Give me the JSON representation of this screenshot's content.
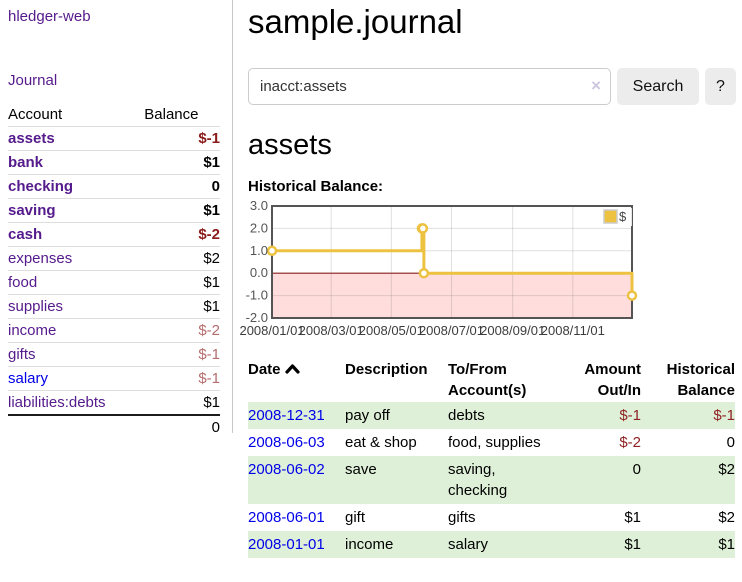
{
  "colors": {
    "link_purple": "#551a8b",
    "link_blue": "#0000e8",
    "negative_strong": "#8b1a1a",
    "negative_muted": "#b56d6d",
    "negative_table": "#8f2323",
    "row_shade_green": "#dff0d8",
    "series_gold": "#edc240"
  },
  "sidebar": {
    "app_title": "hledger-web",
    "journal_link": "Journal",
    "account_header": "Account",
    "balance_header": "Balance",
    "accounts": [
      {
        "name": "assets",
        "indent": 1,
        "bold": true,
        "balance": "$-1",
        "neg": "strong"
      },
      {
        "name": "bank",
        "indent": 2,
        "bold": true,
        "balance": "$1",
        "neg": "none"
      },
      {
        "name": "checking",
        "indent": 3,
        "bold": true,
        "balance": "0",
        "neg": "none"
      },
      {
        "name": "saving",
        "indent": 3,
        "bold": true,
        "balance": "$1",
        "neg": "none"
      },
      {
        "name": "cash",
        "indent": 2,
        "bold": true,
        "balance": "$-2",
        "neg": "strong"
      },
      {
        "name": "expenses",
        "indent": 1,
        "bold": false,
        "balance": "$2",
        "neg": "none"
      },
      {
        "name": "food",
        "indent": 2,
        "bold": false,
        "balance": "$1",
        "neg": "none"
      },
      {
        "name": "supplies",
        "indent": 2,
        "bold": false,
        "balance": "$1",
        "neg": "none"
      },
      {
        "name": "income",
        "indent": 1,
        "bold": false,
        "balance": "$-2",
        "neg": "muted"
      },
      {
        "name": "gifts",
        "indent": 2,
        "bold": false,
        "balance": "$-1",
        "neg": "muted"
      },
      {
        "name": "salary",
        "indent": 2,
        "bold": false,
        "balance": "$-1",
        "neg": "muted",
        "link_color": "blue"
      },
      {
        "name": "liabilities:debts",
        "indent": 1,
        "bold": false,
        "balance": "$1",
        "neg": "none",
        "last": true
      }
    ],
    "total": "0"
  },
  "main": {
    "title": "sample.journal",
    "search": {
      "value": "inacct:assets",
      "clear_icon": "×",
      "button_label": "Search",
      "help_label": "?"
    },
    "account_heading": "assets",
    "chart_label": "Historical Balance:"
  },
  "chart_data": {
    "type": "line",
    "title": "Historical Balance",
    "legend": "$",
    "legend_position": "top-right",
    "grid": true,
    "series_color": "#edc240",
    "below_zero_fill": "#ffdddd",
    "zero_line_color": "#8b1f1f",
    "border_color": "#545454",
    "xlim_days": [
      0,
      365
    ],
    "ylim": [
      -2,
      3
    ],
    "x_ticks": [
      {
        "label": "2008/01/01",
        "day": 0
      },
      {
        "label": "2008/03/01",
        "day": 60
      },
      {
        "label": "2008/05/01",
        "day": 121
      },
      {
        "label": "2008/07/01",
        "day": 182
      },
      {
        "label": "2008/09/01",
        "day": 244
      },
      {
        "label": "2008/11/01",
        "day": 305
      }
    ],
    "y_ticks": [
      {
        "label": "3.0",
        "value": 3
      },
      {
        "label": "2.0",
        "value": 2
      },
      {
        "label": "1.0",
        "value": 1
      },
      {
        "label": "0.0",
        "value": 0
      },
      {
        "label": "-1.0",
        "value": -1
      },
      {
        "label": "-2.0",
        "value": -2
      }
    ],
    "points": [
      {
        "date": "2008-01-01",
        "day": 0,
        "value": 1
      },
      {
        "date": "2008-06-01",
        "day": 152,
        "value": 2
      },
      {
        "date": "2008-06-02",
        "day": 153,
        "value": 2
      },
      {
        "date": "2008-06-03",
        "day": 154,
        "value": 0
      },
      {
        "date": "2008-12-31",
        "day": 365,
        "value": -1
      }
    ]
  },
  "register": {
    "headers": [
      {
        "lines": [
          "Date"
        ],
        "align": "left",
        "sort": "asc"
      },
      {
        "lines": [
          "Description"
        ],
        "align": "left"
      },
      {
        "lines": [
          "To/From",
          "Account(s)"
        ],
        "align": "left"
      },
      {
        "lines": [
          "Amount",
          "Out/In"
        ],
        "align": "right"
      },
      {
        "lines": [
          "Historical",
          "Balance"
        ],
        "align": "right"
      }
    ],
    "rows": [
      {
        "date": "2008-12-31",
        "description": "pay off",
        "accounts": [
          "debts"
        ],
        "amount": "$-1",
        "amount_neg": true,
        "balance": "$-1",
        "balance_neg": true,
        "shaded": true
      },
      {
        "date": "2008-06-03",
        "description": "eat & shop",
        "accounts": [
          "food, supplies"
        ],
        "amount": "$-2",
        "amount_neg": true,
        "balance": "0",
        "balance_neg": false,
        "shaded": false
      },
      {
        "date": "2008-06-02",
        "description": "save",
        "accounts": [
          "saving,",
          "checking"
        ],
        "amount": "0",
        "amount_neg": false,
        "balance": "$2",
        "balance_neg": false,
        "shaded": true
      },
      {
        "date": "2008-06-01",
        "description": "gift",
        "accounts": [
          "gifts"
        ],
        "amount": "$1",
        "amount_neg": false,
        "balance": "$2",
        "balance_neg": false,
        "shaded": false
      },
      {
        "date": "2008-01-01",
        "description": "income",
        "accounts": [
          "salary"
        ],
        "amount": "$1",
        "amount_neg": false,
        "balance": "$1",
        "balance_neg": false,
        "shaded": true
      }
    ]
  }
}
